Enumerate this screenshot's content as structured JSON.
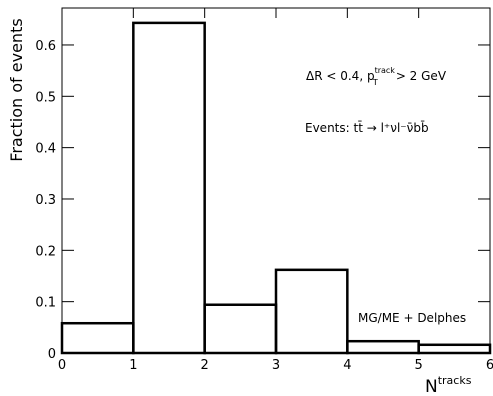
{
  "chart_data": {
    "type": "histogram",
    "y_label": "Fraction of events",
    "x_label": {
      "text": "N",
      "superscript": "tracks"
    },
    "annotations": [
      {
        "text": "ΔR < 0.4, p",
        "superscript": "track",
        "subscript": "T",
        "tail": "> 2 GeV"
      },
      {
        "text": "Events: tt̄ → l⁺νl⁻ν̄bb̄"
      },
      {
        "text": "MG/ME + Delphes"
      }
    ],
    "bins": [
      0,
      1,
      2,
      3,
      4,
      5,
      6
    ],
    "values": [
      0.058,
      0.643,
      0.094,
      0.162,
      0.023,
      0.016
    ],
    "color": "#000000",
    "xlim": [
      0,
      6
    ],
    "xticks": [
      0,
      1,
      2,
      3,
      4,
      5,
      6
    ],
    "ylim": [
      0,
      0.672
    ],
    "yticks": [
      0,
      0.1,
      0.2,
      0.3,
      0.4,
      0.5,
      0.6
    ]
  }
}
